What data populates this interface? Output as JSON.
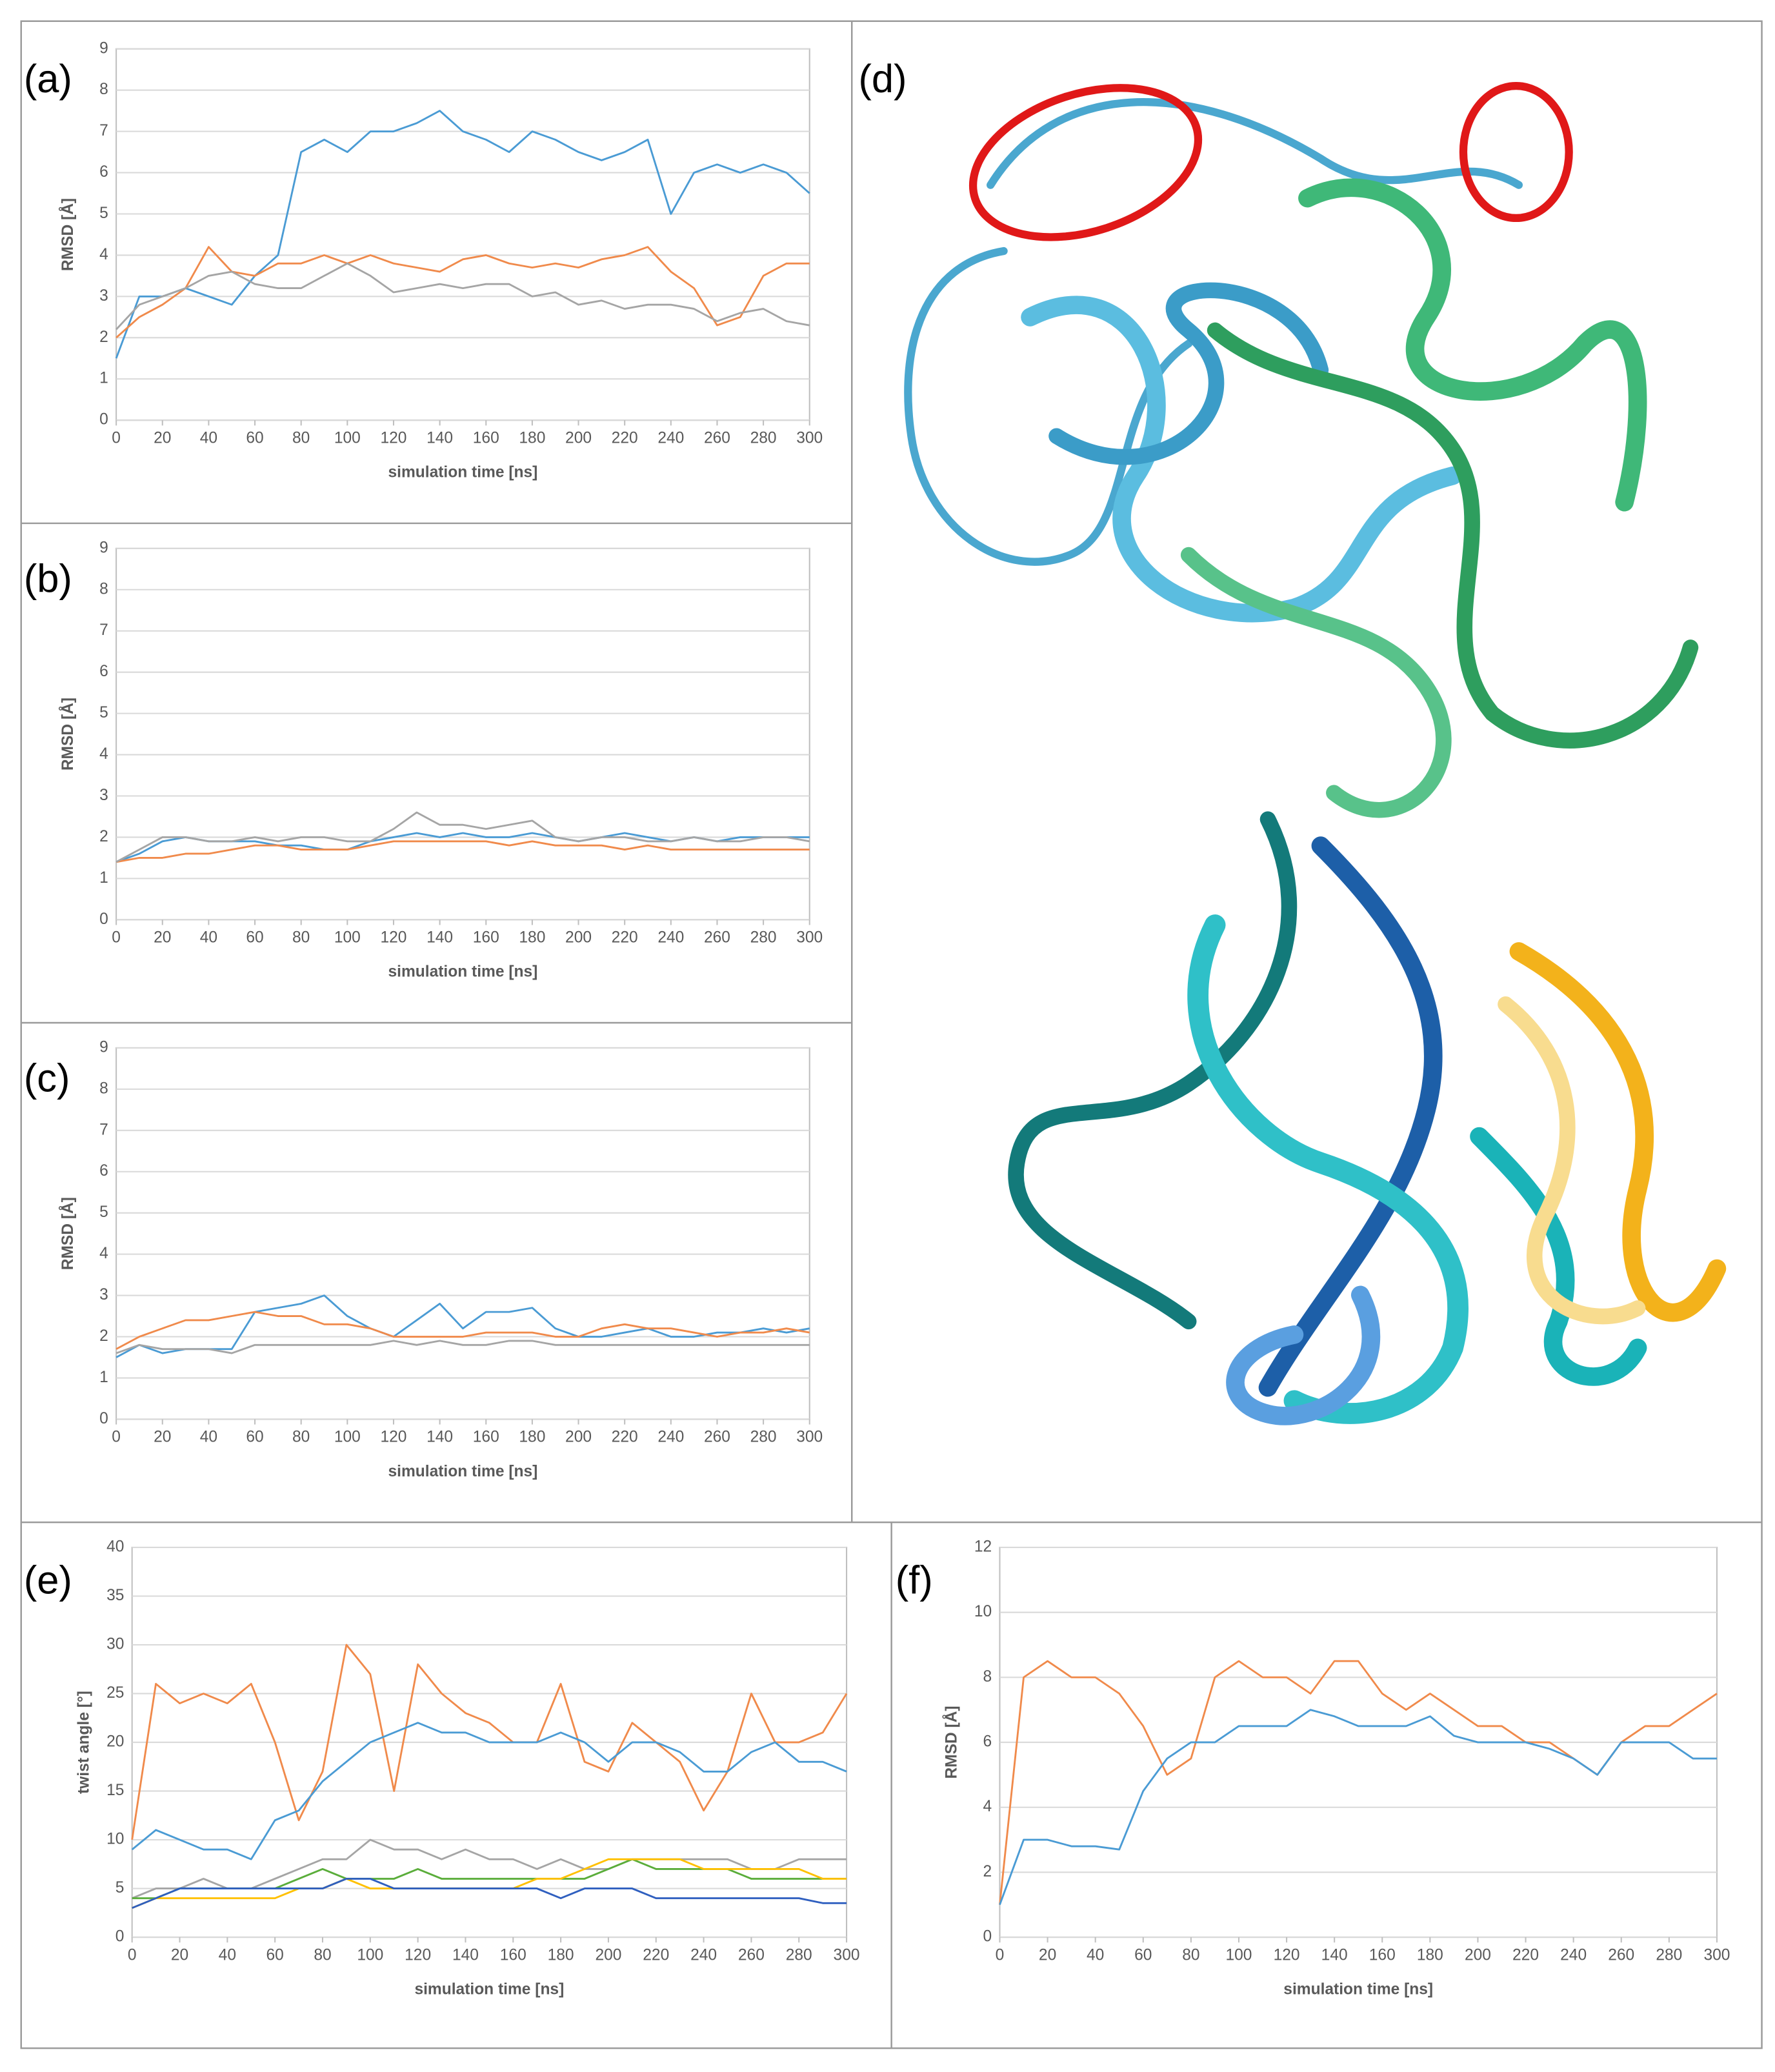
{
  "image_panel": {
    "label": "(d)"
  },
  "chart_data": [
    {
      "type": "line",
      "label": "(a)",
      "xlabel": "simulation time [ns]",
      "ylabel": "RMSD [Å]",
      "x": [
        0,
        10,
        20,
        30,
        40,
        50,
        60,
        70,
        80,
        90,
        100,
        110,
        120,
        130,
        140,
        150,
        160,
        170,
        180,
        190,
        200,
        210,
        220,
        230,
        240,
        250,
        260,
        270,
        280,
        290,
        300
      ],
      "xlim": [
        0,
        300
      ],
      "xticks": [
        0,
        20,
        40,
        60,
        80,
        100,
        120,
        140,
        160,
        180,
        200,
        220,
        240,
        260,
        280,
        300
      ],
      "ylim": [
        0,
        9
      ],
      "yticks": [
        0,
        1,
        2,
        3,
        4,
        5,
        6,
        7,
        8,
        9
      ],
      "grid": true,
      "series": [
        {
          "color": "#4a9bd4",
          "values": [
            1.5,
            3,
            3,
            3.2,
            3,
            2.8,
            3.5,
            4,
            6.5,
            6.8,
            6.5,
            7,
            7,
            7.2,
            7.5,
            7,
            6.8,
            6.5,
            7,
            6.8,
            6.5,
            6.3,
            6.5,
            6.8,
            5,
            6,
            6.2,
            6,
            6.2,
            6,
            5.5
          ]
        },
        {
          "color": "#f08a4b",
          "values": [
            2,
            2.5,
            2.8,
            3.2,
            4.2,
            3.6,
            3.5,
            3.8,
            3.8,
            4,
            3.8,
            4,
            3.8,
            3.7,
            3.6,
            3.9,
            4,
            3.8,
            3.7,
            3.8,
            3.7,
            3.9,
            4,
            4.2,
            3.6,
            3.2,
            2.3,
            2.5,
            3.5,
            3.8,
            3.8
          ]
        },
        {
          "color": "#a5a5a5",
          "values": [
            2.2,
            2.8,
            3,
            3.2,
            3.5,
            3.6,
            3.3,
            3.2,
            3.2,
            3.5,
            3.8,
            3.5,
            3.1,
            3.2,
            3.3,
            3.2,
            3.3,
            3.3,
            3,
            3.1,
            2.8,
            2.9,
            2.7,
            2.8,
            2.8,
            2.7,
            2.4,
            2.6,
            2.7,
            2.4,
            2.3
          ]
        }
      ]
    },
    {
      "type": "line",
      "label": "(b)",
      "xlabel": "simulation time [ns]",
      "ylabel": "RMSD [Å]",
      "x": [
        0,
        10,
        20,
        30,
        40,
        50,
        60,
        70,
        80,
        90,
        100,
        110,
        120,
        130,
        140,
        150,
        160,
        170,
        180,
        190,
        200,
        210,
        220,
        230,
        240,
        250,
        260,
        270,
        280,
        290,
        300
      ],
      "xlim": [
        0,
        300
      ],
      "xticks": [
        0,
        20,
        40,
        60,
        80,
        100,
        120,
        140,
        160,
        180,
        200,
        220,
        240,
        260,
        280,
        300
      ],
      "ylim": [
        0,
        9
      ],
      "yticks": [
        0,
        1,
        2,
        3,
        4,
        5,
        6,
        7,
        8,
        9
      ],
      "grid": true,
      "series": [
        {
          "color": "#4a9bd4",
          "values": [
            1.4,
            1.6,
            1.9,
            2,
            1.9,
            1.9,
            1.9,
            1.8,
            1.8,
            1.7,
            1.7,
            1.9,
            2,
            2.1,
            2,
            2.1,
            2,
            2,
            2.1,
            2,
            1.9,
            2,
            2.1,
            2,
            1.9,
            2,
            1.9,
            2,
            2,
            2,
            2
          ]
        },
        {
          "color": "#f08a4b",
          "values": [
            1.4,
            1.5,
            1.5,
            1.6,
            1.6,
            1.7,
            1.8,
            1.8,
            1.7,
            1.7,
            1.7,
            1.8,
            1.9,
            1.9,
            1.9,
            1.9,
            1.9,
            1.8,
            1.9,
            1.8,
            1.8,
            1.8,
            1.7,
            1.8,
            1.7,
            1.7,
            1.7,
            1.7,
            1.7,
            1.7,
            1.7
          ]
        },
        {
          "color": "#a5a5a5",
          "values": [
            1.4,
            1.7,
            2,
            2,
            1.9,
            1.9,
            2,
            1.9,
            2,
            2,
            1.9,
            1.9,
            2.2,
            2.6,
            2.3,
            2.3,
            2.2,
            2.3,
            2.4,
            2,
            1.9,
            2,
            2,
            1.9,
            1.9,
            2,
            1.9,
            1.9,
            2,
            2,
            1.9
          ]
        }
      ]
    },
    {
      "type": "line",
      "label": "(c)",
      "xlabel": "simulation time [ns]",
      "ylabel": "RMSD [Å]",
      "x": [
        0,
        10,
        20,
        30,
        40,
        50,
        60,
        70,
        80,
        90,
        100,
        110,
        120,
        130,
        140,
        150,
        160,
        170,
        180,
        190,
        200,
        210,
        220,
        230,
        240,
        250,
        260,
        270,
        280,
        290,
        300
      ],
      "xlim": [
        0,
        300
      ],
      "xticks": [
        0,
        20,
        40,
        60,
        80,
        100,
        120,
        140,
        160,
        180,
        200,
        220,
        240,
        260,
        280,
        300
      ],
      "ylim": [
        0,
        9
      ],
      "yticks": [
        0,
        1,
        2,
        3,
        4,
        5,
        6,
        7,
        8,
        9
      ],
      "grid": true,
      "series": [
        {
          "color": "#4a9bd4",
          "values": [
            1.5,
            1.8,
            1.6,
            1.7,
            1.7,
            1.7,
            2.6,
            2.7,
            2.8,
            3,
            2.5,
            2.2,
            2,
            2.4,
            2.8,
            2.2,
            2.6,
            2.6,
            2.7,
            2.2,
            2,
            2,
            2.1,
            2.2,
            2,
            2,
            2.1,
            2.1,
            2.2,
            2.1,
            2.2
          ]
        },
        {
          "color": "#f08a4b",
          "values": [
            1.7,
            2,
            2.2,
            2.4,
            2.4,
            2.5,
            2.6,
            2.5,
            2.5,
            2.3,
            2.3,
            2.2,
            2,
            2,
            2,
            2,
            2.1,
            2.1,
            2.1,
            2,
            2,
            2.2,
            2.3,
            2.2,
            2.2,
            2.1,
            2,
            2.1,
            2.1,
            2.2,
            2.1
          ]
        },
        {
          "color": "#a5a5a5",
          "values": [
            1.6,
            1.8,
            1.7,
            1.7,
            1.7,
            1.6,
            1.8,
            1.8,
            1.8,
            1.8,
            1.8,
            1.8,
            1.9,
            1.8,
            1.9,
            1.8,
            1.8,
            1.9,
            1.9,
            1.8,
            1.8,
            1.8,
            1.8,
            1.8,
            1.8,
            1.8,
            1.8,
            1.8,
            1.8,
            1.8,
            1.8
          ]
        }
      ]
    },
    {
      "type": "line",
      "label": "(e)",
      "xlabel": "simulation time [ns]",
      "ylabel": "twist angle [°]",
      "x": [
        0,
        10,
        20,
        30,
        40,
        50,
        60,
        70,
        80,
        90,
        100,
        110,
        120,
        130,
        140,
        150,
        160,
        170,
        180,
        190,
        200,
        210,
        220,
        230,
        240,
        250,
        260,
        270,
        280,
        290,
        300
      ],
      "xlim": [
        0,
        300
      ],
      "xticks": [
        0,
        20,
        40,
        60,
        80,
        100,
        120,
        140,
        160,
        180,
        200,
        220,
        240,
        260,
        280,
        300
      ],
      "ylim": [
        0,
        40
      ],
      "yticks": [
        0,
        5,
        10,
        15,
        20,
        25,
        30,
        35,
        40
      ],
      "grid": true,
      "series": [
        {
          "color": "#f08a4b",
          "values": [
            10,
            26,
            24,
            25,
            24,
            26,
            20,
            12,
            17,
            30,
            27,
            15,
            28,
            25,
            23,
            22,
            20,
            20,
            26,
            18,
            17,
            22,
            20,
            18,
            13,
            17,
            25,
            20,
            20,
            21,
            25
          ]
        },
        {
          "color": "#4a9bd4",
          "values": [
            9,
            11,
            10,
            9,
            9,
            8,
            12,
            13,
            16,
            18,
            20,
            21,
            22,
            21,
            21,
            20,
            20,
            20,
            21,
            20,
            18,
            20,
            20,
            19,
            17,
            17,
            19,
            20,
            18,
            18,
            17
          ]
        },
        {
          "color": "#a5a5a5",
          "values": [
            4,
            5,
            5,
            6,
            5,
            5,
            6,
            7,
            8,
            8,
            10,
            9,
            9,
            8,
            9,
            8,
            8,
            7,
            8,
            7,
            7,
            8,
            8,
            8,
            8,
            8,
            7,
            7,
            8,
            8,
            8
          ]
        },
        {
          "color": "#5aad3a",
          "values": [
            4,
            4,
            5,
            5,
            5,
            5,
            5,
            6,
            7,
            6,
            6,
            6,
            7,
            6,
            6,
            6,
            6,
            6,
            6,
            6,
            7,
            8,
            7,
            7,
            7,
            7,
            6,
            6,
            6,
            6,
            6
          ]
        },
        {
          "color": "#ffc000",
          "values": [
            3,
            4,
            4,
            4,
            4,
            4,
            4,
            5,
            5,
            6,
            5,
            5,
            5,
            5,
            5,
            5,
            5,
            6,
            6,
            7,
            8,
            8,
            8,
            8,
            7,
            7,
            7,
            7,
            7,
            6,
            6
          ]
        },
        {
          "color": "#2f5fbf",
          "values": [
            3,
            4,
            5,
            5,
            5,
            5,
            5,
            5,
            5,
            6,
            6,
            5,
            5,
            5,
            5,
            5,
            5,
            5,
            4,
            5,
            5,
            5,
            4,
            4,
            4,
            4,
            4,
            4,
            4,
            3.5,
            3.5
          ]
        }
      ]
    },
    {
      "type": "line",
      "label": "(f)",
      "xlabel": "simulation time [ns]",
      "ylabel": "RMSD [Å]",
      "x": [
        0,
        10,
        20,
        30,
        40,
        50,
        60,
        70,
        80,
        90,
        100,
        110,
        120,
        130,
        140,
        150,
        160,
        170,
        180,
        190,
        200,
        210,
        220,
        230,
        240,
        250,
        260,
        270,
        280,
        290,
        300
      ],
      "xlim": [
        0,
        300
      ],
      "xticks": [
        0,
        20,
        40,
        60,
        80,
        100,
        120,
        140,
        160,
        180,
        200,
        220,
        240,
        260,
        280,
        300
      ],
      "ylim": [
        0,
        12
      ],
      "yticks": [
        0,
        2,
        4,
        6,
        8,
        10,
        12
      ],
      "grid": true,
      "series": [
        {
          "color": "#f08a4b",
          "values": [
            1,
            8,
            8.5,
            8,
            8,
            7.5,
            6.5,
            5,
            5.5,
            8,
            8.5,
            8,
            8,
            7.5,
            8.5,
            8.5,
            7.5,
            7,
            7.5,
            7,
            6.5,
            6.5,
            6,
            6,
            5.5,
            5,
            6,
            6.5,
            6.5,
            7,
            7.5
          ]
        },
        {
          "color": "#4a9bd4",
          "values": [
            1,
            3,
            3,
            2.8,
            2.8,
            2.7,
            4.5,
            5.5,
            6,
            6,
            6.5,
            6.5,
            6.5,
            7,
            6.8,
            6.5,
            6.5,
            6.5,
            6.8,
            6.2,
            6,
            6,
            6,
            5.8,
            5.5,
            5,
            6,
            6,
            6,
            5.5,
            5.5
          ]
        }
      ]
    }
  ]
}
